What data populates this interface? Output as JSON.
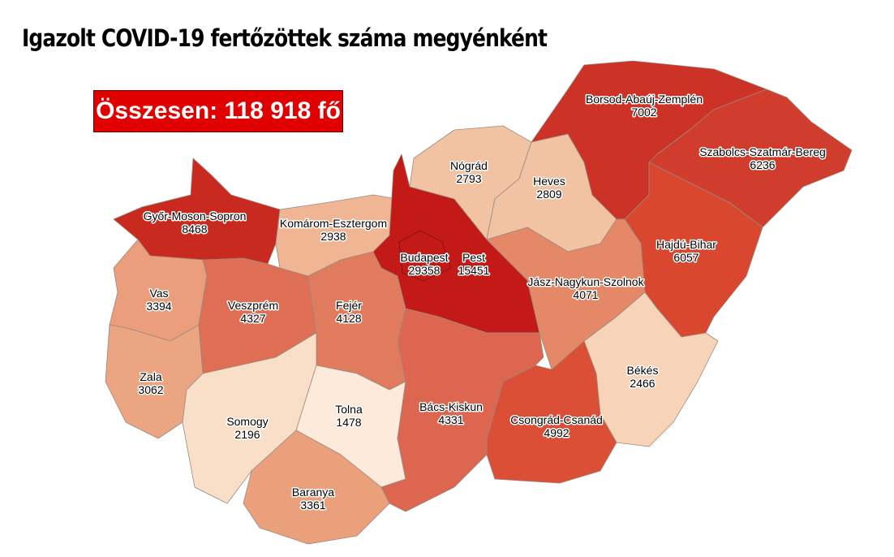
{
  "title": "Igazolt COVID-19 fertőzöttek száma megyénként",
  "total_label": "Összesen: 118 918 fő",
  "counties": [
    {
      "name": "Győr-Moson-Sopron",
      "value": "8468",
      "color": "#c92a1f"
    },
    {
      "name": "Vas",
      "value": "3394",
      "color": "#ea9e7c"
    },
    {
      "name": "Zala",
      "value": "3062",
      "color": "#eba581"
    },
    {
      "name": "Veszprém",
      "value": "4327",
      "color": "#de6f55"
    },
    {
      "name": "Komárom-Esztergom",
      "value": "2938",
      "color": "#f0b593"
    },
    {
      "name": "Fejér",
      "value": "4128",
      "color": "#e07b5e"
    },
    {
      "name": "Somogy",
      "value": "2196",
      "color": "#fadfc8"
    },
    {
      "name": "Tolna",
      "value": "1478",
      "color": "#fdeadb"
    },
    {
      "name": "Baranya",
      "value": "3361",
      "color": "#eba07c"
    },
    {
      "name": "Pest",
      "value": "15451",
      "color": "#c41a17"
    },
    {
      "name": "Budapest",
      "value": "29358",
      "color": "#c41a17"
    },
    {
      "name": "Nógrád",
      "value": "2793",
      "color": "#f2c3a2"
    },
    {
      "name": "Heves",
      "value": "2809",
      "color": "#f2c3a2"
    },
    {
      "name": "Borsod-Abaúj-Zemplén",
      "value": "7002",
      "color": "#cc3326"
    },
    {
      "name": "Szabolcs-Szatmár-Bereg",
      "value": "6236",
      "color": "#d03d2c"
    },
    {
      "name": "Hajdú-Bihar",
      "value": "6057",
      "color": "#d9472f"
    },
    {
      "name": "Jász-Nagykun-Szolnok",
      "value": "4071",
      "color": "#e58867"
    },
    {
      "name": "Békés",
      "value": "2466",
      "color": "#f7d3b8"
    },
    {
      "name": "Csongrád-Csanád",
      "value": "4992",
      "color": "#da4f35"
    },
    {
      "name": "Bács-Kiskun",
      "value": "4331",
      "color": "#dc6650"
    }
  ]
}
